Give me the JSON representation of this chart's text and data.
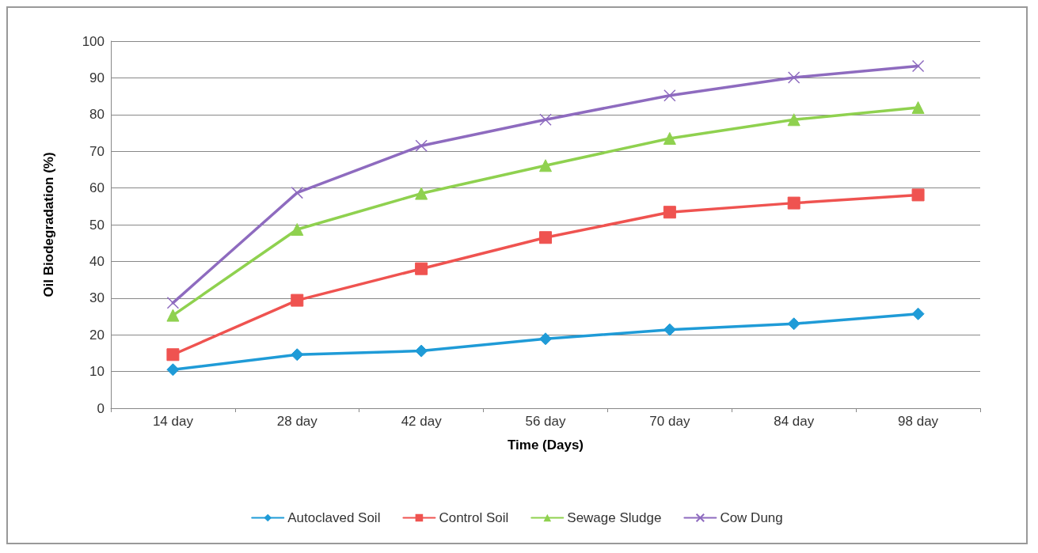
{
  "chart_data": {
    "type": "line",
    "xlabel": "Time (Days)",
    "ylabel": "Oil Biodegradation (%)",
    "categories": [
      "14 day",
      "28 day",
      "42 day",
      "56 day",
      "70 day",
      "84 day",
      "98 day"
    ],
    "series": [
      {
        "name": "Autoclaved Soil",
        "color": "#1f9bd7",
        "marker": "diamond",
        "values": [
          10.5,
          14.6,
          15.6,
          18.9,
          21.4,
          23,
          25.7
        ]
      },
      {
        "name": "Control Soil",
        "color": "#ef5350",
        "marker": "square",
        "values": [
          14.6,
          29.4,
          38,
          46.5,
          53.4,
          55.9,
          58.1
        ]
      },
      {
        "name": "Sewage Sludge",
        "color": "#8fd14f",
        "marker": "triangle",
        "values": [
          25.3,
          48.7,
          58.5,
          66.1,
          73.5,
          78.6,
          81.9
        ]
      },
      {
        "name": "Cow Dung",
        "color": "#8e6bbf",
        "marker": "cross",
        "values": [
          28.7,
          58.7,
          71.5,
          78.6,
          85.2,
          90.1,
          93.2
        ]
      }
    ],
    "ylim": [
      0,
      100
    ],
    "yticks": [
      0,
      10,
      20,
      30,
      40,
      50,
      60,
      70,
      80,
      90,
      100
    ],
    "grid": "y",
    "legend": "bottom",
    "line_style": "solid"
  }
}
